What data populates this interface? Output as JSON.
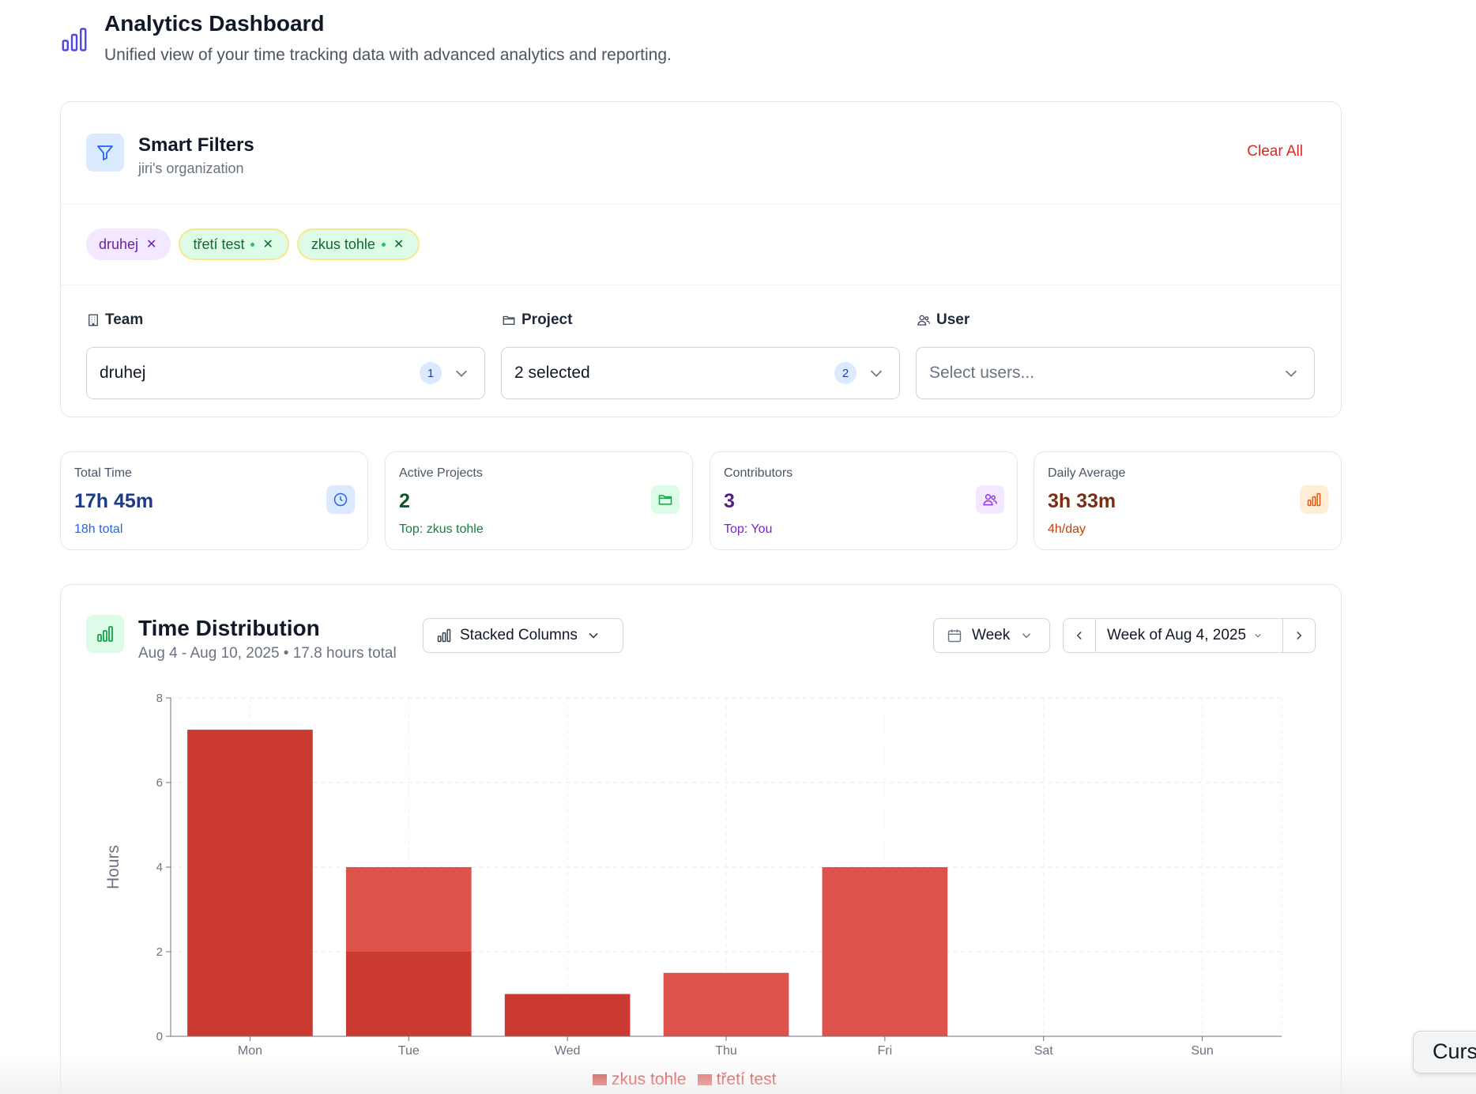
{
  "header": {
    "title": "Analytics Dashboard",
    "subtitle": "Unified view of your time tracking data with advanced analytics and reporting.",
    "icon": "bar-chart-icon"
  },
  "filters": {
    "title": "Smart Filters",
    "subtitle": "jiri's organization",
    "clear_label": "Clear All",
    "chips": [
      {
        "label": "druhej",
        "color": "purple"
      },
      {
        "label": "třetí test",
        "color": "green"
      },
      {
        "label": "zkus tohle",
        "color": "green"
      }
    ],
    "team": {
      "label": "Team",
      "value": "druhej",
      "count": "1"
    },
    "project": {
      "label": "Project",
      "value": "2 selected",
      "count": "2"
    },
    "user": {
      "label": "User",
      "placeholder": "Select users..."
    }
  },
  "stats": [
    {
      "label": "Total Time",
      "value": "17h 45m",
      "sub": "18h total",
      "color": "#1e3a8a",
      "sub_color": "#2563eb",
      "icon": "clock-icon"
    },
    {
      "label": "Active Projects",
      "value": "2",
      "sub": "Top: zkus tohle",
      "color": "#14532d",
      "sub_color": "#15803d",
      "icon": "folder-icon"
    },
    {
      "label": "Contributors",
      "value": "3",
      "sub": "Top: You",
      "color": "#581c87",
      "sub_color": "#7e22ce",
      "icon": "users-icon"
    },
    {
      "label": "Daily Average",
      "value": "3h 33m",
      "sub": "4h/day",
      "color": "#7c2d12",
      "sub_color": "#c2410c",
      "icon": "bar-chart-icon"
    }
  ],
  "distribution": {
    "title": "Time Distribution",
    "subtitle": "Aug 4 - Aug 10, 2025 • 17.8 hours total",
    "chart_type_label": "Stacked Columns",
    "period_label": "Week",
    "range_label": "Week of Aug 4, 2025"
  },
  "chart_data": {
    "type": "bar",
    "stacked": true,
    "categories": [
      "Mon",
      "Tue",
      "Wed",
      "Thu",
      "Fri",
      "Sat",
      "Sun"
    ],
    "series": [
      {
        "name": "zkus tohle",
        "color": "#cb3a31",
        "values": [
          7.25,
          2,
          1,
          0,
          0,
          0,
          0
        ]
      },
      {
        "name": "třetí test",
        "color": "#de524c",
        "values": [
          0,
          2,
          0,
          1.5,
          4,
          0,
          0
        ]
      }
    ],
    "ylabel": "Hours",
    "ylim": [
      0,
      8
    ],
    "yticks": [
      0,
      2,
      4,
      6,
      8
    ],
    "grid": true,
    "legend": "bottom"
  },
  "cursor_tooltip": "Curs"
}
